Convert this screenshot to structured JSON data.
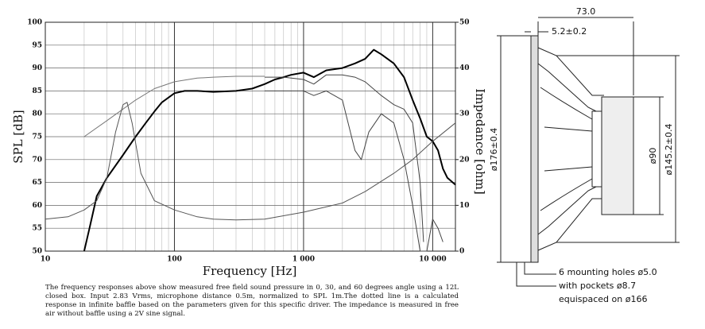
{
  "chart_data": {
    "type": "line",
    "xlabel": "Frequency [Hz]",
    "ylabel": "SPL [dB]",
    "y2label": "Impedance [ohm]",
    "xscale": "log",
    "xlim": [
      10,
      15000
    ],
    "xticks": [
      10,
      100,
      {
        "value": 1000,
        "label": "1 000"
      },
      {
        "value": 10000,
        "label": "10 000"
      }
    ],
    "ylim": [
      50,
      100
    ],
    "yticks": [
      50,
      55,
      60,
      65,
      70,
      75,
      80,
      85,
      90,
      95,
      100
    ],
    "y2lim": [
      0,
      50
    ],
    "y2ticks": [
      0,
      10,
      20,
      30,
      40,
      50
    ],
    "grid": true,
    "minor_grid": true,
    "series": [
      {
        "color": "#000000",
        "width": 2,
        "x": [
          20,
          22,
          25,
          30,
          40,
          50,
          60,
          70,
          80,
          100,
          120,
          150,
          200,
          300,
          400,
          500,
          600,
          700,
          800,
          1000,
          1200,
          1500,
          2000,
          2500,
          3000,
          3500,
          4000,
          5000,
          6000,
          7000,
          8000,
          9000,
          10000,
          11000,
          12000,
          13000,
          15000
        ],
        "values": [
          50,
          55,
          62,
          66,
          71,
          75,
          78,
          80.5,
          82.5,
          84.5,
          85,
          85,
          84.8,
          85,
          85.5,
          86.5,
          87.5,
          88,
          88.5,
          89,
          88,
          89.5,
          90,
          91,
          92,
          94,
          93,
          91,
          88,
          83,
          79,
          75,
          74,
          72,
          68,
          66,
          64.5
        ]
      },
      {
        "color": "#444444",
        "width": 1,
        "x": [
          500,
          700,
          1000,
          1200,
          1500,
          2000,
          2500,
          3000,
          4000,
          5000,
          6000,
          7000,
          8000,
          8500
        ],
        "values": [
          88,
          88,
          87.5,
          86.5,
          88.5,
          88.5,
          88,
          87,
          84,
          82,
          81,
          78,
          65,
          52
        ]
      },
      {
        "color": "#444444",
        "width": 1,
        "x": [
          500,
          700,
          1000,
          1200,
          1500,
          2000,
          2500,
          2800,
          3200,
          4000,
          5000,
          6000,
          7000,
          8000,
          9000,
          10000,
          11000,
          12000
        ],
        "values": [
          85,
          85,
          85,
          84,
          85,
          83,
          72,
          70,
          76,
          80,
          78,
          70,
          60,
          50,
          50,
          57,
          55,
          52
        ]
      },
      {
        "color": "#777777",
        "width": 1,
        "x": [
          20,
          30,
          50,
          70,
          100,
          150,
          200,
          300,
          500
        ],
        "values": [
          75,
          78.5,
          83,
          85.5,
          87,
          87.8,
          88,
          88.2,
          88.2
        ]
      },
      {
        "color": "#555555",
        "width": 1,
        "axis": "y2",
        "x": [
          10,
          15,
          20,
          25,
          30,
          35,
          40,
          43,
          47,
          55,
          70,
          100,
          150,
          200,
          300,
          500,
          1000,
          2000,
          3000,
          5000,
          7000,
          10000,
          15000
        ],
        "values": [
          7,
          7.5,
          9,
          11,
          16,
          26,
          32,
          32.5,
          28,
          17,
          11,
          9,
          7.5,
          7,
          6.8,
          7,
          8.5,
          10.5,
          13,
          17,
          20,
          24,
          28
        ]
      }
    ]
  },
  "caption": "The frequency responses above show measured free field sound pressure in 0, 30, and 60 degrees angle using a 12L closed box. Input 2.83 Vrms, microphone distance 0.5m, normalized to SPL 1m.The dotted line is a calculated response in infinite baffle based on the parameters given for this specific driver. The impedance is measured in free air without baffle using a 2V sine signal.",
  "drawing": {
    "depth": "73.0",
    "flange": "5.2±0.2",
    "outer_diameter": "ø176±0.4",
    "magnet_diameter": "ø90",
    "cutout_diameter": "ø145.2±0.4",
    "note": [
      "6 mounting holes ø5.0",
      "with pockets ø8.7",
      "equispaced on ø166"
    ]
  }
}
